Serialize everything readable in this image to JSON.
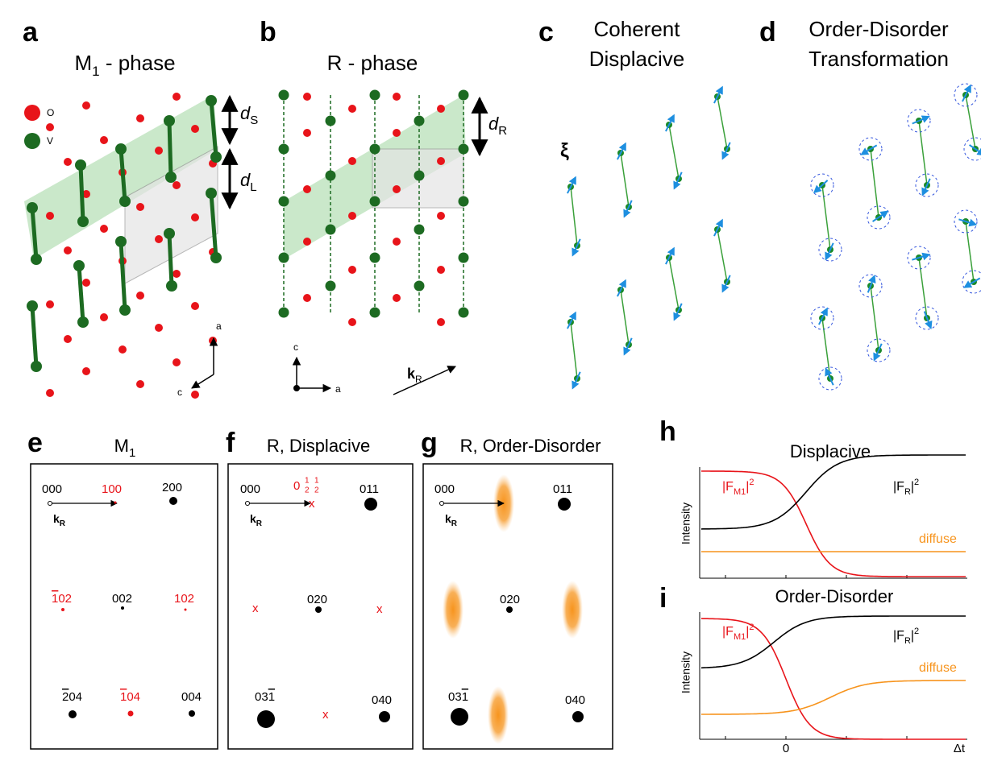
{
  "panels": {
    "a": {
      "label": "a",
      "title": {
        "main": "M",
        "sub": "1",
        "rest": " - phase"
      },
      "legend": [
        "O",
        "V"
      ],
      "spacing_short": {
        "main": "d",
        "sub": "S"
      },
      "spacing_long": {
        "main": "d",
        "sub": "L"
      },
      "axes": [
        "a",
        "c"
      ]
    },
    "b": {
      "label": "b",
      "title": "R - phase",
      "spacing": {
        "main": "d",
        "sub": "R"
      },
      "axes": [
        "c",
        "a"
      ],
      "wavevector": {
        "main": "k",
        "sub": "R"
      }
    },
    "c": {
      "label": "c",
      "title": [
        "Coherent",
        "Displacive"
      ],
      "order_parameter": "ξ"
    },
    "d": {
      "label": "d",
      "title": [
        "Order-Disorder",
        "Transformation"
      ]
    },
    "e": {
      "label": "e",
      "title": {
        "main": "M",
        "sub": "1"
      },
      "wavevector": {
        "main": "k",
        "sub": "R"
      },
      "reflections": [
        "000",
        "100",
        "200",
        [
          {
            "text": "1",
            "overline": true
          },
          {
            "text": "02"
          }
        ],
        "002",
        "102",
        [
          {
            "text": "2",
            "overline": true
          },
          {
            "text": "04"
          }
        ],
        [
          {
            "text": "1",
            "overline": true
          },
          {
            "text": "04"
          }
        ],
        "004"
      ]
    },
    "f": {
      "label": "f",
      "title": "R, Displacive",
      "wavevector": {
        "main": "k",
        "sub": "R"
      },
      "half_order": [
        "0",
        "1",
        "2",
        "1",
        "2"
      ],
      "reflections": [
        "000",
        "011",
        "020",
        [
          {
            "text": "03"
          },
          {
            "text": "1",
            "overline": true
          }
        ],
        "040"
      ],
      "extinct": [
        "x",
        "x",
        "x",
        "x"
      ]
    },
    "g": {
      "label": "g",
      "title": "R, Order-Disorder",
      "wavevector": {
        "main": "k",
        "sub": "R"
      },
      "reflections": [
        "000",
        "011",
        "020",
        [
          {
            "text": "03"
          },
          {
            "text": "1",
            "overline": true
          }
        ],
        "040"
      ]
    },
    "h": {
      "label": "h",
      "title": "Displacive",
      "y_label": "Intensity",
      "m1": {
        "pre": "|F",
        "sub": "M1",
        "post": "|",
        "sup": "2"
      },
      "r": {
        "pre": "|F",
        "sub": "R",
        "post": "|",
        "sup": "2"
      },
      "diffuse": "diffuse"
    },
    "i": {
      "label": "i",
      "title": "Order-Disorder",
      "y_label": "Intensity",
      "m1": {
        "pre": "|F",
        "sub": "M1",
        "post": "|",
        "sup": "2"
      },
      "r": {
        "pre": "|F",
        "sub": "R",
        "post": "|",
        "sup": "2"
      },
      "diffuse": "diffuse",
      "x_ticks": [
        "0",
        "Δt"
      ]
    }
  }
}
